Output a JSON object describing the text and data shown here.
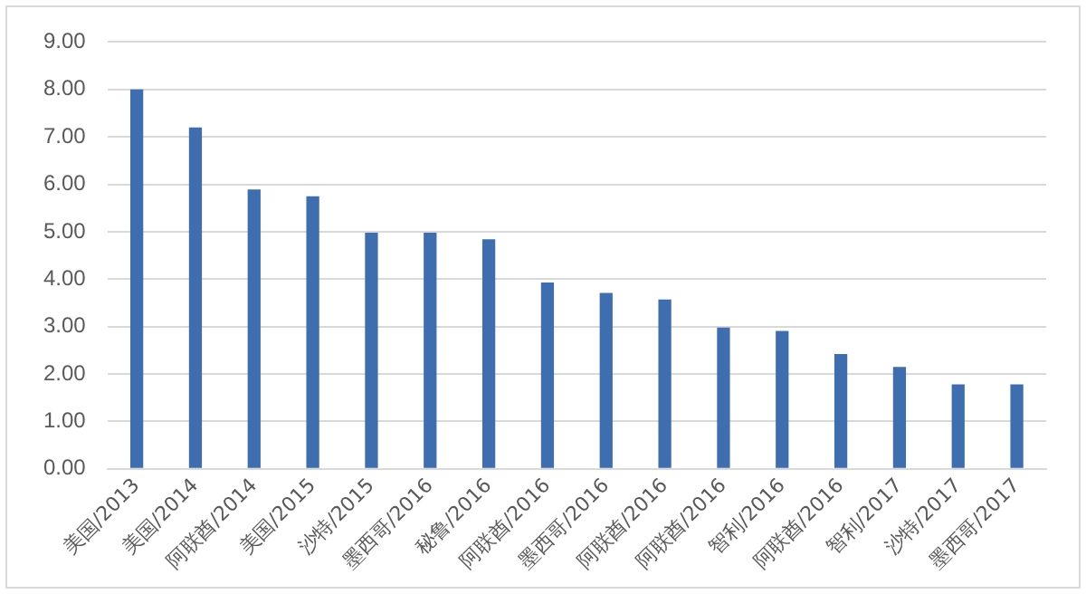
{
  "chart_data": {
    "type": "bar",
    "categories": [
      "美国/2013",
      "美国/2014",
      "阿联酋/2014",
      "美国/2015",
      "沙特/2015",
      "墨西哥/2016",
      "秘鲁/2016",
      "阿联酋/2016",
      "墨西哥/2016",
      "阿联酋/2016",
      "阿联酋/2016",
      "智利/2016",
      "阿联酋/2016",
      "智利/2017",
      "沙特/2017",
      "墨西哥/2017"
    ],
    "values": [
      8.0,
      7.2,
      5.89,
      5.75,
      4.98,
      4.98,
      4.84,
      3.93,
      3.71,
      3.57,
      2.98,
      2.91,
      2.42,
      2.15,
      1.78,
      1.78
    ],
    "color": "#3e6db0",
    "ylim": [
      0,
      9
    ],
    "yticks": [
      {
        "value": 0,
        "label": "0.00"
      },
      {
        "value": 1,
        "label": "1.00"
      },
      {
        "value": 2,
        "label": "2.00"
      },
      {
        "value": 3,
        "label": "3.00"
      },
      {
        "value": 4,
        "label": "4.00"
      },
      {
        "value": 5,
        "label": "5.00"
      },
      {
        "value": 6,
        "label": "6.00"
      },
      {
        "value": 7,
        "label": "7.00"
      },
      {
        "value": 8,
        "label": "8.00"
      },
      {
        "value": 9,
        "label": "9.00"
      }
    ],
    "grid": "y"
  }
}
